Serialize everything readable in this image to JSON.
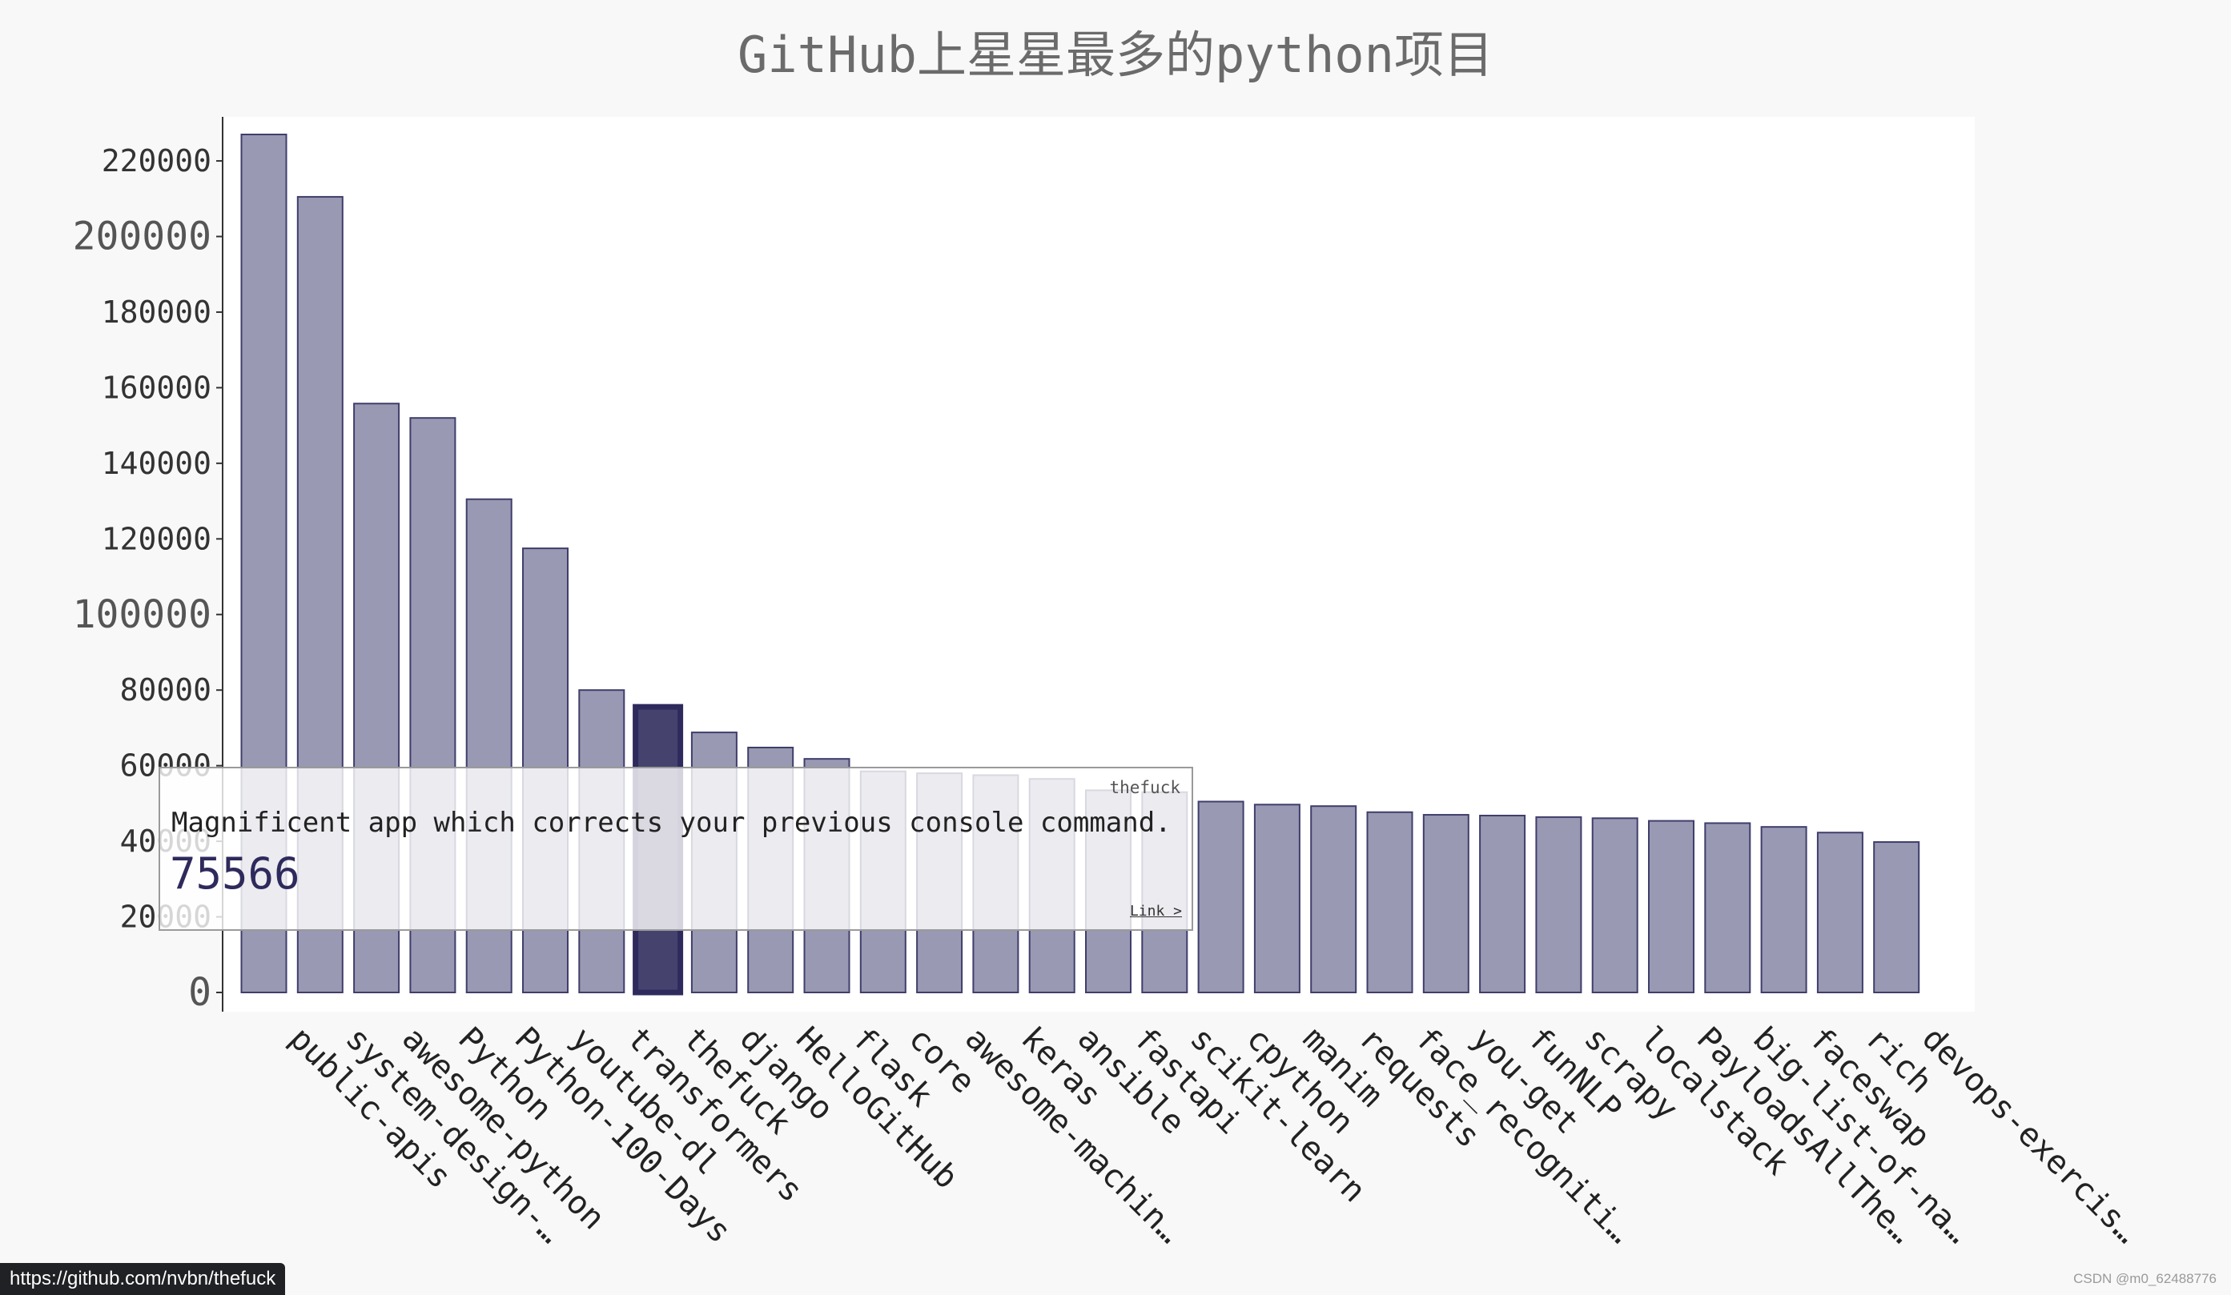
{
  "chart_data": {
    "type": "bar",
    "title": "GitHub上星星最多的python项目",
    "categories": [
      "public-apis",
      "system-design-…",
      "awesome-python",
      "Python",
      "Python-100-Days",
      "youtube-dl",
      "transformers",
      "thefuck",
      "django",
      "HelloGitHub",
      "flask",
      "core",
      "awesome-machin…",
      "keras",
      "ansible",
      "fastapi",
      "scikit-learn",
      "cpython",
      "manim",
      "requests",
      "face_recogniti…",
      "you-get",
      "funNLP",
      "scrapy",
      "localstack",
      "PayloadsAllThe…",
      "big-list-of-na…",
      "faceswap",
      "rich",
      "devops-exercis…"
    ],
    "values": [
      227000,
      210500,
      155800,
      152000,
      130500,
      117500,
      80000,
      75566,
      68800,
      64800,
      61800,
      58500,
      58000,
      57500,
      56500,
      53500,
      53000,
      50500,
      49700,
      49300,
      47700,
      47000,
      46800,
      46400,
      46100,
      45400,
      44800,
      43800,
      42300,
      39800
    ],
    "yticks": [
      0,
      20000,
      40000,
      60000,
      80000,
      100000,
      120000,
      140000,
      160000,
      180000,
      200000,
      220000
    ],
    "major_ticks": [
      0,
      100000,
      200000
    ],
    "ylim": [
      0,
      227000
    ],
    "highlight_index": 7,
    "bar_color": "#9999b3",
    "bar_stroke": "#3f3e6b",
    "highlight_color": "#45436e"
  },
  "tooltip": {
    "title": "thefuck",
    "description": "Magnificent app which corrects your previous console command.",
    "value": "75566",
    "link_label": "Link >"
  },
  "status_url": "https://github.com/nvbn/thefuck",
  "watermark": "CSDN @m0_62488776"
}
